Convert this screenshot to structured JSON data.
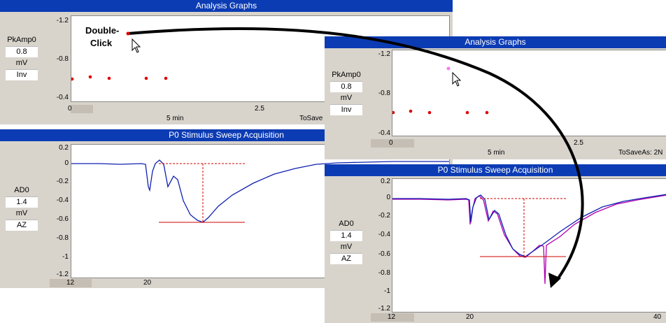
{
  "left_window": {
    "analysis": {
      "title": "Analysis Graphs",
      "channel": {
        "name": "PkAmp0",
        "value": "0.8",
        "unit": "mV",
        "mode": "Inv"
      },
      "y_ticks": [
        "-1.2",
        "-0.8",
        "-0.4"
      ],
      "x_ticks": [
        "0",
        "2.5"
      ],
      "x_unit": "5 min",
      "save_label": "ToSave"
    },
    "sweep": {
      "title": "P0 Stimulus Sweep Acquisition",
      "channel": {
        "name": "AD0",
        "value": "1.4",
        "unit": "mV",
        "mode": "AZ"
      },
      "y_ticks": [
        "0.2",
        "0",
        "-0.2",
        "-0.4",
        "-0.6",
        "-0.8",
        "-1",
        "-1.2"
      ],
      "x_ticks": [
        "12",
        "20"
      ]
    }
  },
  "right_window": {
    "analysis": {
      "title": "Analysis Graphs",
      "channel": {
        "name": "PkAmp0",
        "value": "0.8",
        "unit": "mV",
        "mode": "Inv"
      },
      "y_ticks": [
        "-1.2",
        "-0.8",
        "-0.4"
      ],
      "x_ticks": [
        "0",
        "2.5"
      ],
      "x_unit": "5 min",
      "save_label": "ToSaveAs: 2N"
    },
    "sweep": {
      "title": "P0 Stimulus Sweep Acquisition",
      "channel": {
        "name": "AD0",
        "value": "1.4",
        "unit": "mV",
        "mode": "AZ"
      },
      "y_ticks": [
        "0.2",
        "0",
        "-0.2",
        "-0.4",
        "-0.6",
        "-0.8",
        "-1",
        "-1.2"
      ],
      "x_ticks": [
        "12",
        "20",
        "40"
      ]
    }
  },
  "annotation": {
    "line1": "Double-",
    "line2": "Click"
  },
  "colors": {
    "title_bar": "#0c3cb4",
    "points": "#e00000",
    "highlight_point": "#f080f0",
    "trace_blue": "#1020b0",
    "trace_magenta": "#b000b0",
    "marker": "#d00000"
  }
}
